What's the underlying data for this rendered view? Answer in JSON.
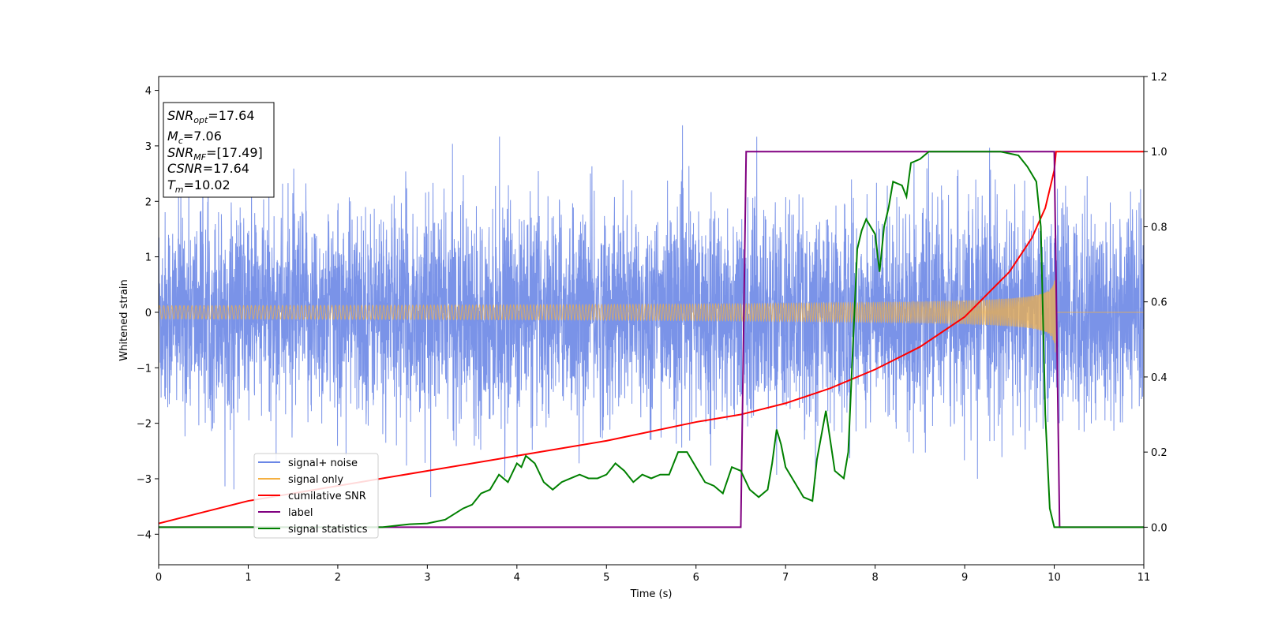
{
  "chart_data": {
    "type": "line",
    "xlabel": "Time (s)",
    "ylabel": "Whitened strain",
    "xlim": [
      0,
      11
    ],
    "ylim": [
      -4.55,
      4.25
    ],
    "y2lim": [
      -0.1,
      1.2
    ],
    "x_ticks": [
      "0",
      "1",
      "2",
      "3",
      "4",
      "5",
      "6",
      "7",
      "8",
      "9",
      "10",
      "11"
    ],
    "y_ticks": [
      "4",
      "3",
      "2",
      "1",
      "0",
      "−1",
      "−2",
      "−3",
      "−4"
    ],
    "y2_ticks": [
      "1.2",
      "1.0",
      "0.8",
      "0.6",
      "0.4",
      "0.2",
      "0.0"
    ],
    "grid": false,
    "legend_position": "lower-left",
    "colors": {
      "signal_noise": "#6b87e6",
      "signal_only": "#f5b041",
      "cumulative_snr": "#ff0000",
      "label": "#800080",
      "signal_statistics": "#008000"
    },
    "series": [
      {
        "name": "signal+ noise",
        "axis": "left",
        "description_values": "noisy whitened strain, roughly zero-mean with amplitude about ±2.5 and spikes to about ±3.8 over 0–11 s"
      },
      {
        "name": "signal only",
        "axis": "left",
        "chirp": {
          "t_merge": 10.02,
          "amp_start": 0.12,
          "amp_end": 1.15,
          "freq_start": 22
        }
      },
      {
        "name": "cumilative SNR",
        "axis": "right",
        "x": [
          0,
          1,
          2,
          3,
          4,
          5,
          6,
          6.5,
          7,
          7.5,
          8,
          8.5,
          9,
          9.5,
          9.75,
          9.9,
          10.0,
          10.02,
          11
        ],
        "y": [
          0.01,
          0.07,
          0.11,
          0.15,
          0.19,
          0.23,
          0.28,
          0.3,
          0.33,
          0.37,
          0.42,
          0.48,
          0.56,
          0.68,
          0.77,
          0.85,
          0.95,
          1.0,
          1.0
        ]
      },
      {
        "name": "label",
        "axis": "right",
        "x": [
          0,
          6.5,
          6.56,
          10.0,
          10.06,
          11
        ],
        "y": [
          0.0,
          0.0,
          1.0,
          1.0,
          0.0,
          0.0
        ]
      },
      {
        "name": "signal statistics",
        "axis": "right",
        "x": [
          0,
          0.5,
          1,
          1.5,
          2,
          2.5,
          2.8,
          3.0,
          3.2,
          3.4,
          3.5,
          3.6,
          3.7,
          3.8,
          3.9,
          4.0,
          4.05,
          4.1,
          4.15,
          4.2,
          4.3,
          4.4,
          4.5,
          4.6,
          4.7,
          4.8,
          4.9,
          5.0,
          5.1,
          5.2,
          5.3,
          5.4,
          5.5,
          5.6,
          5.7,
          5.8,
          5.9,
          6.0,
          6.1,
          6.2,
          6.3,
          6.4,
          6.5,
          6.6,
          6.7,
          6.8,
          6.85,
          6.9,
          6.95,
          7.0,
          7.1,
          7.2,
          7.3,
          7.35,
          7.45,
          7.55,
          7.65,
          7.7,
          7.75,
          7.8,
          7.85,
          7.9,
          8.0,
          8.05,
          8.1,
          8.15,
          8.2,
          8.3,
          8.35,
          8.4,
          8.5,
          8.6,
          8.7,
          8.8,
          9.0,
          9.2,
          9.4,
          9.6,
          9.7,
          9.8,
          9.85,
          9.9,
          9.95,
          10.0,
          10.1,
          11
        ],
        "y": [
          0.0,
          0.0,
          0.0,
          0.0,
          0.0,
          0.0,
          0.008,
          0.01,
          0.02,
          0.05,
          0.06,
          0.09,
          0.1,
          0.14,
          0.12,
          0.17,
          0.16,
          0.19,
          0.18,
          0.17,
          0.12,
          0.1,
          0.12,
          0.13,
          0.14,
          0.13,
          0.13,
          0.14,
          0.17,
          0.15,
          0.12,
          0.14,
          0.13,
          0.14,
          0.14,
          0.2,
          0.2,
          0.16,
          0.12,
          0.11,
          0.09,
          0.16,
          0.15,
          0.1,
          0.08,
          0.1,
          0.17,
          0.26,
          0.22,
          0.16,
          0.12,
          0.08,
          0.07,
          0.18,
          0.31,
          0.15,
          0.13,
          0.2,
          0.47,
          0.74,
          0.79,
          0.82,
          0.78,
          0.68,
          0.8,
          0.85,
          0.92,
          0.91,
          0.88,
          0.97,
          0.98,
          1.0,
          1.0,
          1.0,
          1.0,
          1.0,
          1.0,
          0.99,
          0.96,
          0.92,
          0.8,
          0.3,
          0.05,
          0.0,
          0.0,
          0.0
        ]
      }
    ]
  },
  "legend": {
    "signal_noise": "signal+ noise",
    "signal_only": "signal only",
    "cumulative_snr": "cumilative SNR",
    "label": "label",
    "signal_statistics": "signal statistics"
  },
  "info_box": {
    "snr_opt_value": "=17.64",
    "mc_value": "=7.06",
    "snr_mf_value": "=[17.49]",
    "csnr_value": "=17.64",
    "tm_value": "=10.02"
  }
}
